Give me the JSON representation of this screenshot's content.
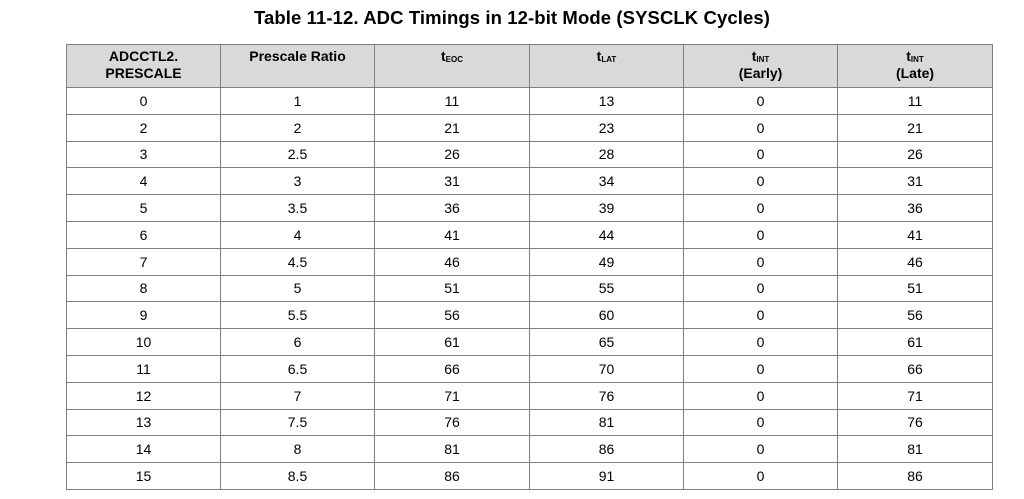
{
  "caption": "Table 11-12. ADC Timings in 12-bit Mode (SYSCLK Cycles)",
  "columns": {
    "c0": {
      "line1": "ADCCTL2.",
      "line2": "PRESCALE"
    },
    "c1": {
      "label": "Prescale Ratio"
    },
    "c2": {
      "base": "t",
      "sub": "EOC"
    },
    "c3": {
      "base": "t",
      "sub": "LAT"
    },
    "c4": {
      "base": "t",
      "sub": "INT",
      "note": "(Early)"
    },
    "c5": {
      "base": "t",
      "sub": "INT",
      "note": "(Late)"
    }
  },
  "rows": [
    [
      "0",
      "1",
      "11",
      "13",
      "0",
      "11"
    ],
    [
      "2",
      "2",
      "21",
      "23",
      "0",
      "21"
    ],
    [
      "3",
      "2.5",
      "26",
      "28",
      "0",
      "26"
    ],
    [
      "4",
      "3",
      "31",
      "34",
      "0",
      "31"
    ],
    [
      "5",
      "3.5",
      "36",
      "39",
      "0",
      "36"
    ],
    [
      "6",
      "4",
      "41",
      "44",
      "0",
      "41"
    ],
    [
      "7",
      "4.5",
      "46",
      "49",
      "0",
      "46"
    ],
    [
      "8",
      "5",
      "51",
      "55",
      "0",
      "51"
    ],
    [
      "9",
      "5.5",
      "56",
      "60",
      "0",
      "56"
    ],
    [
      "10",
      "6",
      "61",
      "65",
      "0",
      "61"
    ],
    [
      "11",
      "6.5",
      "66",
      "70",
      "0",
      "66"
    ],
    [
      "12",
      "7",
      "71",
      "76",
      "0",
      "71"
    ],
    [
      "13",
      "7.5",
      "76",
      "81",
      "0",
      "76"
    ],
    [
      "14",
      "8",
      "81",
      "86",
      "0",
      "81"
    ],
    [
      "15",
      "8.5",
      "86",
      "91",
      "0",
      "86"
    ]
  ]
}
